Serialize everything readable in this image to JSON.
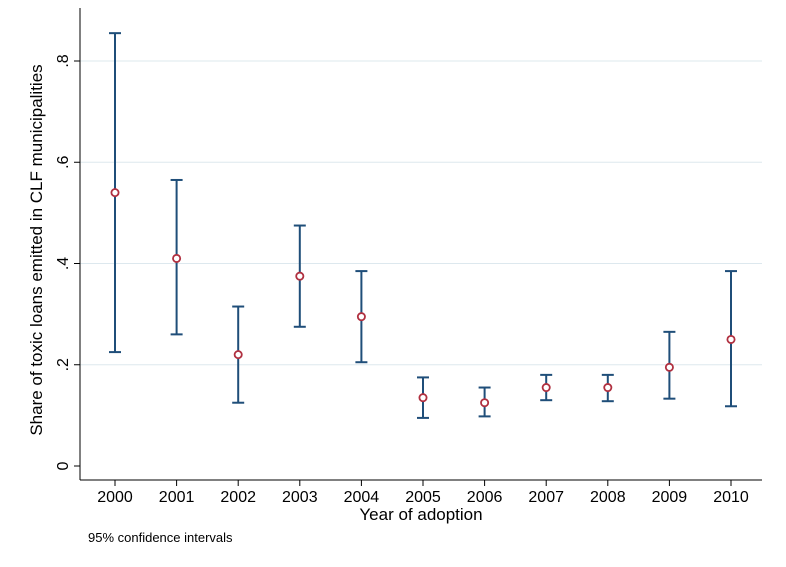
{
  "chart_data": {
    "type": "scatter",
    "title": "",
    "xlabel": "Year of adoption",
    "ylabel": "Share of toxic loans emitted in CLF municipalities",
    "note": "95% confidence intervals",
    "categories": [
      "2000",
      "2001",
      "2002",
      "2003",
      "2004",
      "2005",
      "2006",
      "2007",
      "2008",
      "2009",
      "2010"
    ],
    "values": [
      0.54,
      0.41,
      0.22,
      0.375,
      0.295,
      0.135,
      0.125,
      0.155,
      0.155,
      0.195,
      0.25
    ],
    "ci_lower": [
      0.225,
      0.26,
      0.125,
      0.275,
      0.205,
      0.095,
      0.098,
      0.13,
      0.128,
      0.133,
      0.118
    ],
    "ci_upper": [
      0.855,
      0.565,
      0.315,
      0.475,
      0.385,
      0.175,
      0.155,
      0.18,
      0.18,
      0.265,
      0.385
    ],
    "ylim": [
      0,
      0.88
    ],
    "yticks": [
      0,
      0.2,
      0.4,
      0.6,
      0.8
    ],
    "ytick_labels": [
      "0",
      ".2",
      ".4",
      ".6",
      ".8"
    ],
    "grid": "horizontal",
    "colors": {
      "point": "#b03040",
      "ci": "#1f4e79",
      "grid": "#dde8ee",
      "axis": "#000000"
    }
  }
}
